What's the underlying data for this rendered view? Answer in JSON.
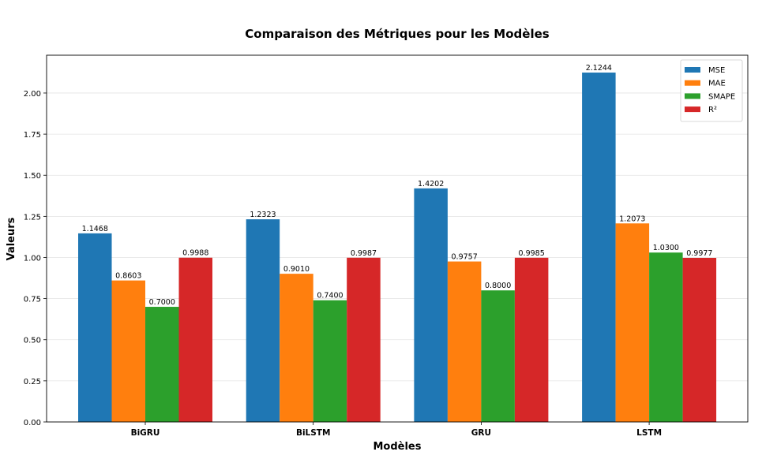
{
  "chart_data": {
    "type": "bar",
    "title": "Comparaison des Métriques pour les Modèles",
    "xlabel": "Modèles",
    "ylabel": "Valeurs",
    "categories": [
      "BiGRU",
      "BiLSTM",
      "GRU",
      "LSTM"
    ],
    "series": [
      {
        "name": "MSE",
        "color": "#1f77b4",
        "values": [
          1.1468,
          1.2323,
          1.4202,
          2.1244
        ]
      },
      {
        "name": "MAE",
        "color": "#ff7f0e",
        "values": [
          0.8603,
          0.901,
          0.9757,
          1.2073
        ]
      },
      {
        "name": "SMAPE",
        "color": "#2ca02c",
        "values": [
          0.7,
          0.74,
          0.8,
          1.03
        ]
      },
      {
        "name": "R²",
        "color": "#d62728",
        "values": [
          0.9988,
          0.9987,
          0.9985,
          0.9977
        ]
      }
    ],
    "ylim": [
      0,
      2.23
    ],
    "yticks": [
      "0.00",
      "0.25",
      "0.50",
      "0.75",
      "1.00",
      "1.25",
      "1.50",
      "1.75",
      "2.00"
    ],
    "grid": "horizontal",
    "legend_position": "top-right"
  }
}
